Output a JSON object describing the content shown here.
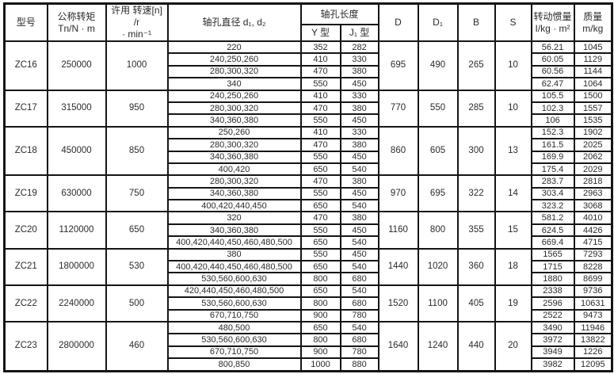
{
  "table": {
    "header": {
      "model": "型号",
      "torque": "公称转矩\nTn/N · m",
      "speed": "许用 转速[n] /r\n· min⁻¹",
      "bore": "轴孔直径 d₁, d₂",
      "length_group": "轴孔长度",
      "y_type": "Y 型",
      "j1_type": "J₁ 型",
      "d": "D",
      "d1": "D₁",
      "b": "B",
      "s": "S",
      "inertia": "转动惯量\nI/kg · m²",
      "mass": "质量 m/kg"
    },
    "groups": [
      {
        "model": "ZC16",
        "torque": "250000",
        "speed": "1000",
        "d": "695",
        "d1": "490",
        "b": "265",
        "s": "10",
        "rows": [
          {
            "bore": "220",
            "y": "352",
            "j1": "282",
            "inertia": "56.21",
            "mass": "1045"
          },
          {
            "bore": "240,250,260",
            "y": "410",
            "j1": "330",
            "inertia": "60.05",
            "mass": "1129"
          },
          {
            "bore": "280,300,320",
            "y": "470",
            "j1": "380",
            "inertia": "60.56",
            "mass": "1144"
          },
          {
            "bore": "340",
            "y": "550",
            "j1": "450",
            "inertia": "62.47",
            "mass": "1064"
          }
        ]
      },
      {
        "model": "ZC17",
        "torque": "315000",
        "speed": "950",
        "d": "770",
        "d1": "550",
        "b": "285",
        "s": "10",
        "rows": [
          {
            "bore": "240,250,260",
            "y": "410",
            "j1": "330",
            "inertia": "105.5",
            "mass": "1500"
          },
          {
            "bore": "280,300,320",
            "y": "470",
            "j1": "380",
            "inertia": "102.3",
            "mass": "1557"
          },
          {
            "bore": "340,360,380",
            "y": "550",
            "j1": "450",
            "inertia": "106",
            "mass": "1535"
          }
        ]
      },
      {
        "model": "ZC18",
        "torque": "450000",
        "speed": "850",
        "d": "860",
        "d1": "605",
        "b": "300",
        "s": "13",
        "rows": [
          {
            "bore": "250,260",
            "y": "410",
            "j1": "330",
            "inertia": "152.3",
            "mass": "1902"
          },
          {
            "bore": "280,300,320",
            "y": "470",
            "j1": "380",
            "inertia": "161.5",
            "mass": "2025"
          },
          {
            "bore": "340,360,380",
            "y": "550",
            "j1": "450",
            "inertia": "169.9",
            "mass": "2062"
          },
          {
            "bore": "400,420",
            "y": "650",
            "j1": "540",
            "inertia": "175.4",
            "mass": "2029"
          }
        ]
      },
      {
        "model": "ZC19",
        "torque": "630000",
        "speed": "750",
        "d": "970",
        "d1": "695",
        "b": "322",
        "s": "14",
        "rows": [
          {
            "bore": "280,300,320",
            "y": "470",
            "j1": "380",
            "inertia": "283.7",
            "mass": "2818"
          },
          {
            "bore": "340,360,380",
            "y": "550",
            "j1": "450",
            "inertia": "303.4",
            "mass": "2963"
          },
          {
            "bore": "400,420,440,450",
            "y": "650",
            "j1": "540",
            "inertia": "323.2",
            "mass": "3068"
          }
        ]
      },
      {
        "model": "ZC20",
        "torque": "1120000",
        "speed": "650",
        "d": "1160",
        "d1": "800",
        "b": "355",
        "s": "15",
        "rows": [
          {
            "bore": "320",
            "y": "470",
            "j1": "380",
            "inertia": "581.2",
            "mass": "4010"
          },
          {
            "bore": "340,360,380",
            "y": "550",
            "j1": "450",
            "inertia": "624.5",
            "mass": "4426"
          },
          {
            "bore": "400,420,440,450,460,480,500",
            "y": "650",
            "j1": "540",
            "inertia": "669.4",
            "mass": "4715"
          }
        ]
      },
      {
        "model": "ZC21",
        "torque": "1800000",
        "speed": "530",
        "d": "1440",
        "d1": "1020",
        "b": "360",
        "s": "18",
        "rows": [
          {
            "bore": "380",
            "y": "550",
            "j1": "450",
            "inertia": "1565",
            "mass": "7293"
          },
          {
            "bore": "400,420,440,450,460,480,500",
            "y": "650",
            "j1": "540",
            "inertia": "1715",
            "mass": "8228"
          },
          {
            "bore": "530,560,600,630",
            "y": "800",
            "j1": "680",
            "inertia": "1880",
            "mass": "8699"
          }
        ]
      },
      {
        "model": "ZC22",
        "torque": "2240000",
        "speed": "500",
        "d": "1520",
        "d1": "1100",
        "b": "405",
        "s": "19",
        "rows": [
          {
            "bore": "420,440,450,460,480,500",
            "y": "650",
            "j1": "540",
            "inertia": "2338",
            "mass": "9736"
          },
          {
            "bore": "530,560,600,630",
            "y": "800",
            "j1": "680",
            "inertia": "2596",
            "mass": "10631"
          },
          {
            "bore": "670,710,750",
            "y": "900",
            "j1": "780",
            "inertia": "2522",
            "mass": "9473"
          }
        ]
      },
      {
        "model": "ZC23",
        "torque": "2800000",
        "speed": "460",
        "d": "1640",
        "d1": "1240",
        "b": "440",
        "s": "20",
        "rows": [
          {
            "bore": "480,500",
            "y": "650",
            "j1": "540",
            "inertia": "3490",
            "mass": "11946"
          },
          {
            "bore": "530,560,600,630",
            "y": "800",
            "j1": "680",
            "inertia": "3972",
            "mass": "13822"
          },
          {
            "bore": "670,710,750",
            "y": "900",
            "j1": "780",
            "inertia": "3949",
            "mass": "1226"
          },
          {
            "bore": "800,850",
            "y": "1000",
            "j1": "880",
            "inertia": "3982",
            "mass": "12095"
          }
        ]
      }
    ]
  }
}
